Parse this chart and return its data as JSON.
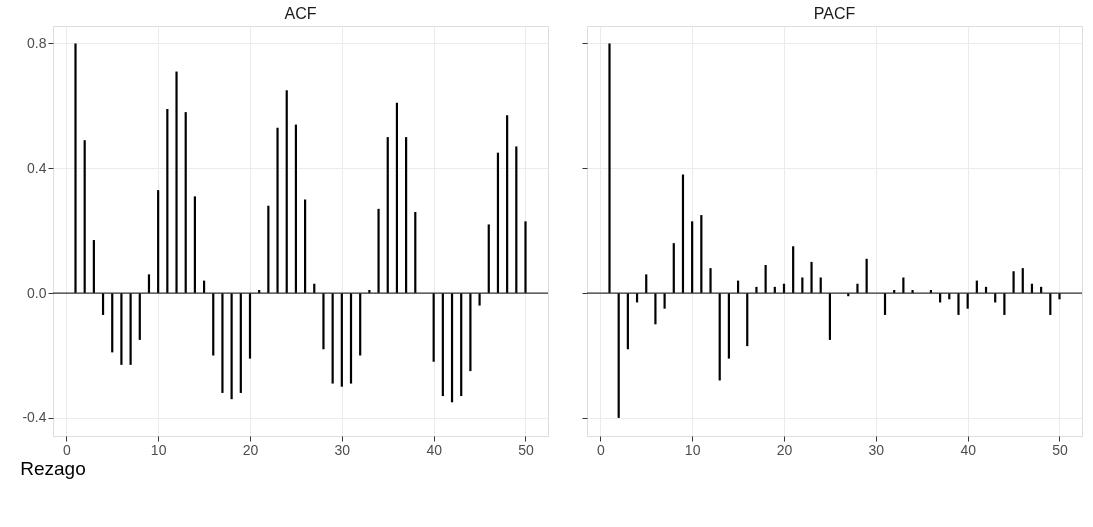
{
  "chart_data": [
    {
      "type": "bar",
      "title": "ACF",
      "xlabel": "Rezago",
      "x": [
        1,
        2,
        3,
        4,
        5,
        6,
        7,
        8,
        9,
        10,
        11,
        12,
        13,
        14,
        15,
        16,
        17,
        18,
        19,
        20,
        21,
        22,
        23,
        24,
        25,
        26,
        27,
        28,
        29,
        30,
        31,
        32,
        33,
        34,
        35,
        36,
        37,
        38,
        39,
        40,
        41,
        42,
        43,
        44,
        45,
        46,
        47,
        48,
        49,
        50
      ],
      "series": [
        {
          "color": "#000000",
          "values": [
            0.8,
            0.49,
            0.17,
            -0.07,
            -0.19,
            -0.23,
            -0.23,
            -0.15,
            0.06,
            0.33,
            0.59,
            0.71,
            0.58,
            0.31,
            0.04,
            -0.2,
            -0.32,
            -0.34,
            -0.32,
            -0.21,
            0.01,
            0.28,
            0.53,
            0.65,
            0.54,
            0.3,
            0.03,
            -0.18,
            -0.29,
            -0.3,
            -0.29,
            -0.2,
            0.01,
            0.27,
            0.5,
            0.61,
            0.5,
            0.26,
            0.0,
            -0.22,
            -0.33,
            -0.35,
            -0.33,
            -0.25,
            -0.04,
            0.22,
            0.45,
            0.57,
            0.47,
            0.23
          ]
        }
      ],
      "xlim": [
        -1.45,
        52.45
      ],
      "xticks": [
        0,
        10,
        20,
        30,
        40,
        50
      ],
      "ylim": [
        -0.458,
        0.856
      ],
      "yticks": [
        {
          "value": -0.4,
          "label": "-0.4"
        },
        {
          "value": 0,
          "label": "0.0"
        },
        0.4,
        0.8
      ],
      "ref_lines": [
        {
          "axis": "y",
          "value": 0
        }
      ],
      "grid": true
    },
    {
      "type": "bar",
      "title": "PACF",
      "x": [
        1,
        2,
        3,
        4,
        5,
        6,
        7,
        8,
        9,
        10,
        11,
        12,
        13,
        14,
        15,
        16,
        17,
        18,
        19,
        20,
        21,
        22,
        23,
        24,
        25,
        26,
        27,
        28,
        29,
        30,
        31,
        32,
        33,
        34,
        35,
        36,
        37,
        38,
        39,
        40,
        41,
        42,
        43,
        44,
        45,
        46,
        47,
        48,
        49,
        50
      ],
      "series": [
        {
          "color": "#000000",
          "values": [
            0.8,
            -0.4,
            -0.18,
            -0.03,
            0.06,
            -0.1,
            -0.05,
            0.16,
            0.38,
            0.23,
            0.25,
            0.08,
            -0.28,
            -0.21,
            0.04,
            -0.17,
            0.02,
            0.09,
            0.02,
            0.03,
            0.15,
            0.05,
            0.1,
            0.05,
            -0.15,
            0.0,
            -0.01,
            0.03,
            0.11,
            0.0,
            -0.07,
            0.01,
            0.05,
            0.01,
            0.0,
            0.01,
            -0.03,
            -0.02,
            -0.07,
            -0.05,
            0.04,
            0.02,
            -0.03,
            -0.07,
            0.07,
            0.08,
            0.03,
            0.02,
            -0.07,
            -0.02
          ]
        }
      ],
      "xlim": [
        -1.45,
        52.45
      ],
      "xticks": [
        0,
        10,
        20,
        30,
        40,
        50
      ],
      "ylim": [
        -0.458,
        0.856
      ],
      "yticks": [
        -0.4,
        0.0,
        0.4,
        0.8
      ],
      "ref_lines": [
        {
          "axis": "y",
          "value": 0
        }
      ],
      "grid": true,
      "tick_labels": "x"
    }
  ]
}
